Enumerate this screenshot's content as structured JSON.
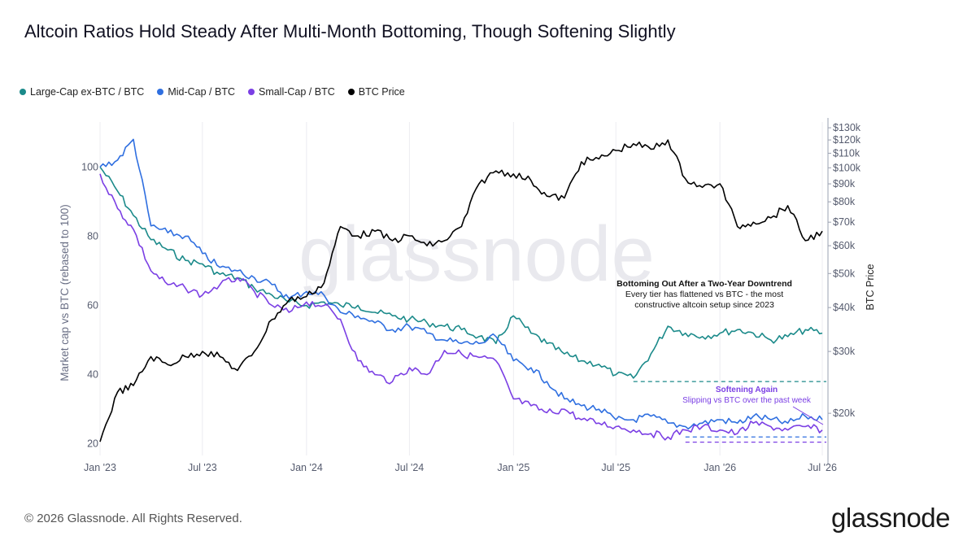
{
  "title": "Altcoin Ratios Hold Steady After Multi-Month Bottoming, Though Softening Slightly",
  "footer": "© 2026 Glassnode. All Rights Reserved.",
  "brand": "glassnode",
  "watermark": "glassnode",
  "colors": {
    "large_cap": "#1b8a8a",
    "mid_cap": "#2f6fe0",
    "small_cap": "#7b3fe4",
    "btc": "#000000",
    "axis_text": "#555b6e"
  },
  "legend": [
    {
      "label": "Large-Cap ex-BTC / BTC",
      "color": "#1b8a8a"
    },
    {
      "label": "Mid-Cap / BTC",
      "color": "#2f6fe0"
    },
    {
      "label": "Small-Cap / BTC",
      "color": "#7b3fe4"
    },
    {
      "label": "BTC Price",
      "color": "#000000"
    }
  ],
  "annotations": {
    "bottoming": {
      "title": "Bottoming Out After a Two-Year Downtrend",
      "line1": "Every tier has flattened vs BTC - the most",
      "line2": "constructive altcoin setup since 2023"
    },
    "softening": {
      "title": "Softening Again",
      "subtitle": "Slipping vs BTC over the past week"
    }
  },
  "chart_data": {
    "type": "line",
    "xlabel": "",
    "ylabel": "Market cap vs BTC (rebased to 100)",
    "y2label": "BTC Price",
    "x_ticks": [
      "Jan '23",
      "Jul '23",
      "Jan '24",
      "Jul '24",
      "Jan '25",
      "Jul '25",
      "Jan '26",
      "Jul '26"
    ],
    "y_ticks": [
      20,
      40,
      60,
      80,
      100
    ],
    "y2_ticks": [
      "$20k",
      "$30k",
      "$40k",
      "$50k",
      "$60k",
      "$70k",
      "$80k",
      "$90k",
      "$100k",
      "$110k",
      "$120k",
      "$130k"
    ],
    "ylim": [
      19,
      113
    ],
    "y2lim": [
      16000,
      135000
    ],
    "y2_scale": "log",
    "reference_levels": {
      "large_cap": 38,
      "mid_cap": 22,
      "small_cap": 20.5
    },
    "series": [
      {
        "name": "Large-Cap ex-BTC / BTC",
        "axis": "left",
        "dates": [
          "2023-01-01",
          "2023-02-01",
          "2023-03-01",
          "2023-04-01",
          "2023-05-01",
          "2023-06-01",
          "2023-07-01",
          "2023-08-01",
          "2023-09-01",
          "2023-10-01",
          "2023-11-01",
          "2023-12-01",
          "2024-01-01",
          "2024-02-01",
          "2024-03-01",
          "2024-04-01",
          "2024-05-01",
          "2024-06-01",
          "2024-07-01",
          "2024-08-01",
          "2024-09-01",
          "2024-10-01",
          "2024-11-01",
          "2024-12-01",
          "2025-01-01",
          "2025-02-01",
          "2025-03-01",
          "2025-04-01",
          "2025-05-01",
          "2025-06-01",
          "2025-07-01",
          "2025-08-01",
          "2025-09-01",
          "2025-10-01",
          "2025-11-01",
          "2025-12-01",
          "2026-01-01",
          "2026-02-01",
          "2026-03-01",
          "2026-04-01",
          "2026-05-01",
          "2026-06-01",
          "2026-07-01"
        ],
        "values": [
          100,
          93,
          86,
          79,
          76,
          73,
          72,
          69,
          68,
          65,
          63,
          61,
          60,
          61,
          60,
          60,
          58,
          57,
          56,
          55,
          54,
          53,
          51,
          49,
          57,
          52,
          49,
          46,
          44,
          43,
          40,
          39,
          46,
          54,
          52,
          51,
          52,
          53,
          52,
          50,
          51,
          53,
          52
        ]
      },
      {
        "name": "Mid-Cap / BTC",
        "axis": "left",
        "dates": [
          "2023-01-01",
          "2023-02-01",
          "2023-03-01",
          "2023-04-01",
          "2023-05-01",
          "2023-06-01",
          "2023-07-01",
          "2023-08-01",
          "2023-09-01",
          "2023-10-01",
          "2023-11-01",
          "2023-12-01",
          "2024-01-01",
          "2024-02-01",
          "2024-03-01",
          "2024-04-01",
          "2024-05-01",
          "2024-06-01",
          "2024-07-01",
          "2024-08-01",
          "2024-09-01",
          "2024-10-01",
          "2024-11-01",
          "2024-12-01",
          "2025-01-01",
          "2025-02-01",
          "2025-03-01",
          "2025-04-01",
          "2025-05-01",
          "2025-06-01",
          "2025-07-01",
          "2025-08-01",
          "2025-09-01",
          "2025-10-01",
          "2025-11-01",
          "2025-12-01",
          "2026-01-01",
          "2026-02-01",
          "2026-03-01",
          "2026-04-01",
          "2026-05-01",
          "2026-06-01",
          "2026-07-01"
        ],
        "values": [
          100,
          102,
          108,
          83,
          81,
          80,
          75,
          71,
          70,
          68,
          66,
          62,
          64,
          63,
          58,
          57,
          55,
          53,
          54,
          52,
          50,
          49,
          49,
          51,
          44,
          42,
          38,
          33,
          31,
          30,
          27,
          27,
          28,
          26,
          25,
          26,
          27,
          26,
          28,
          27,
          26,
          28,
          27
        ]
      },
      {
        "name": "Small-Cap / BTC",
        "axis": "left",
        "dates": [
          "2023-01-01",
          "2023-02-01",
          "2023-03-01",
          "2023-04-01",
          "2023-05-01",
          "2023-06-01",
          "2023-07-01",
          "2023-08-01",
          "2023-09-01",
          "2023-10-01",
          "2023-11-01",
          "2023-12-01",
          "2024-01-01",
          "2024-02-01",
          "2024-03-01",
          "2024-04-01",
          "2024-05-01",
          "2024-06-01",
          "2024-07-01",
          "2024-08-01",
          "2024-09-01",
          "2024-10-01",
          "2024-11-01",
          "2024-12-01",
          "2025-01-01",
          "2025-02-01",
          "2025-03-01",
          "2025-04-01",
          "2025-05-01",
          "2025-06-01",
          "2025-07-01",
          "2025-08-01",
          "2025-09-01",
          "2025-10-01",
          "2025-11-01",
          "2025-12-01",
          "2026-01-01",
          "2026-02-01",
          "2026-03-01",
          "2026-04-01",
          "2026-05-01",
          "2026-06-01",
          "2026-07-01"
        ],
        "values": [
          98,
          88,
          82,
          70,
          66,
          65,
          63,
          66,
          68,
          64,
          60,
          58,
          61,
          60,
          56,
          44,
          40,
          38,
          42,
          40,
          47,
          46,
          45,
          44,
          33,
          31,
          29,
          30,
          27,
          26,
          25,
          24,
          23,
          22,
          24,
          25,
          24,
          23,
          26,
          25,
          24,
          25,
          24
        ]
      },
      {
        "name": "BTC Price",
        "axis": "right",
        "dates": [
          "2023-01-01",
          "2023-02-01",
          "2023-03-01",
          "2023-04-01",
          "2023-05-01",
          "2023-06-01",
          "2023-07-01",
          "2023-08-01",
          "2023-09-01",
          "2023-10-01",
          "2023-11-01",
          "2023-12-01",
          "2024-01-01",
          "2024-02-01",
          "2024-03-01",
          "2024-04-01",
          "2024-05-01",
          "2024-06-01",
          "2024-07-01",
          "2024-08-01",
          "2024-09-01",
          "2024-10-01",
          "2024-11-01",
          "2024-12-01",
          "2025-01-01",
          "2025-02-01",
          "2025-03-01",
          "2025-04-01",
          "2025-05-01",
          "2025-06-01",
          "2025-07-01",
          "2025-08-01",
          "2025-09-01",
          "2025-10-01",
          "2025-11-01",
          "2025-12-01",
          "2026-01-01",
          "2026-02-01",
          "2026-03-01",
          "2026-04-01",
          "2026-05-01",
          "2026-06-01",
          "2026-07-01"
        ],
        "values": [
          16600,
          23000,
          24000,
          29000,
          27500,
          29000,
          30000,
          29000,
          26500,
          30000,
          37000,
          42000,
          43000,
          47000,
          68000,
          64000,
          66000,
          62000,
          64000,
          60000,
          62000,
          68000,
          90000,
          98000,
          96000,
          92000,
          83000,
          82000,
          104000,
          106000,
          112000,
          117000,
          113000,
          120000,
          93000,
          88000,
          90000,
          68000,
          70000,
          72000,
          78000,
          62000,
          66000
        ]
      }
    ]
  }
}
